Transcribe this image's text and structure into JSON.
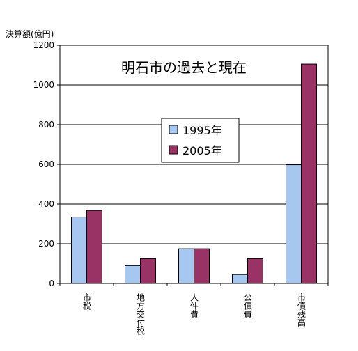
{
  "chart_data": {
    "type": "bar",
    "title": "明石市の過去と現在",
    "unit_label": "決算額(億円)",
    "categories": [
      "市税",
      "地方交付税",
      "人件費",
      "公債費",
      "市債残高"
    ],
    "series": [
      {
        "name": "1995年",
        "color": "#a6c8f0",
        "values": [
          335,
          90,
          175,
          45,
          598
        ]
      },
      {
        "name": "2005年",
        "color": "#993366",
        "values": [
          368,
          125,
          175,
          125,
          1105
        ]
      }
    ],
    "ylim": [
      0,
      1200
    ],
    "yticks": [
      "0",
      "200",
      "400",
      "600",
      "800",
      "1000",
      "1200"
    ],
    "grid": true,
    "legend_position": "center"
  }
}
